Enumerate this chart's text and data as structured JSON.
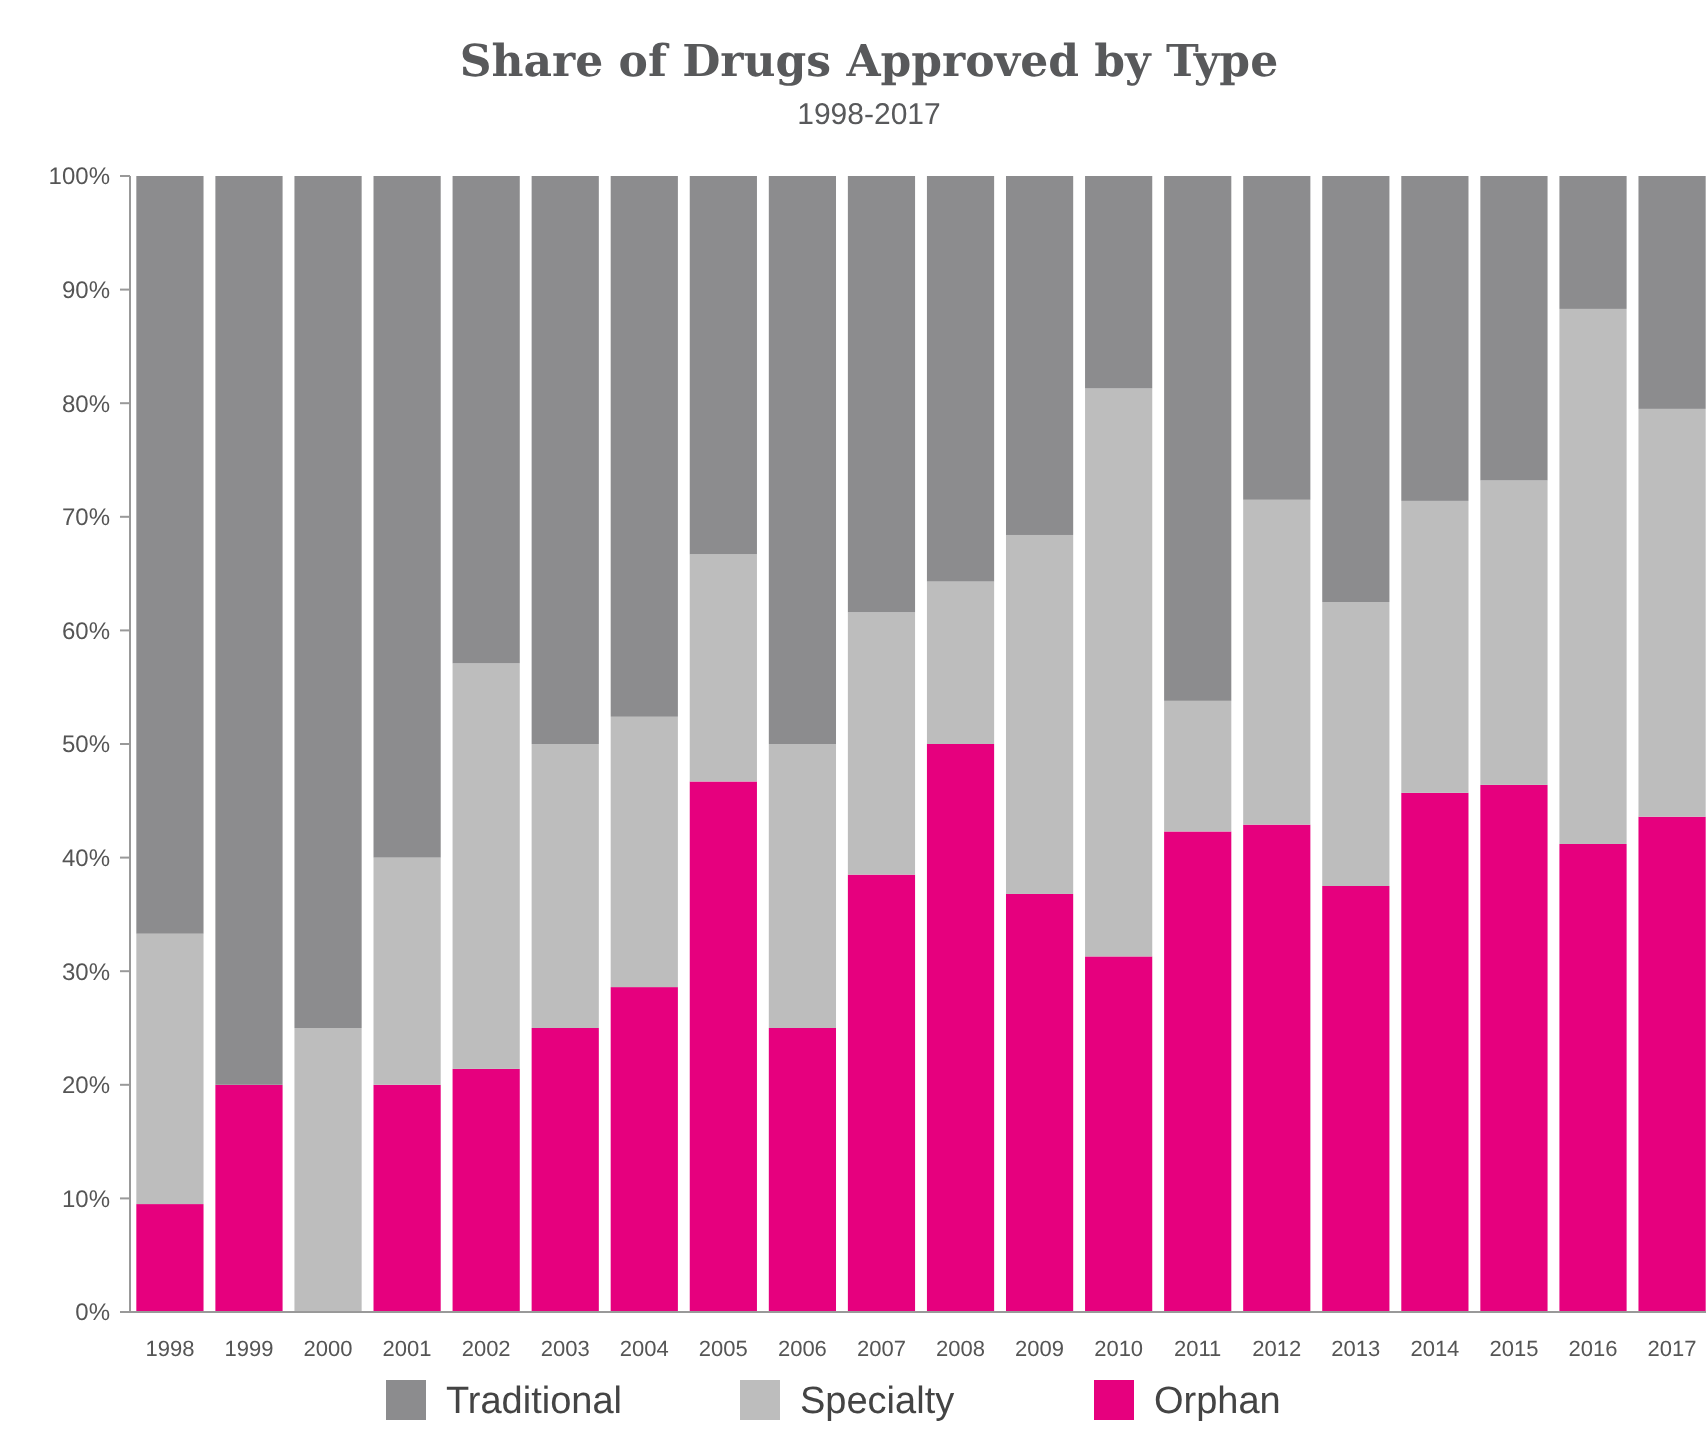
{
  "chart_data": {
    "type": "bar",
    "stacked": true,
    "title": "Share of Drugs Approved by Type",
    "subtitle": "1998-2017",
    "categories": [
      "1998",
      "1999",
      "2000",
      "2001",
      "2002",
      "2003",
      "2004",
      "2005",
      "2006",
      "2007",
      "2008",
      "2009",
      "2010",
      "2011",
      "2012",
      "2013",
      "2014",
      "2015",
      "2016",
      "2017"
    ],
    "series": [
      {
        "name": "Orphan",
        "color": "#e6007e",
        "values": [
          9.5,
          20,
          0,
          20,
          21.4,
          25,
          28.6,
          46.7,
          25,
          38.5,
          50,
          36.8,
          31.3,
          42.3,
          42.9,
          37.5,
          45.7,
          46.4,
          41.2,
          43.6
        ]
      },
      {
        "name": "Specialty",
        "color": "#bdbdbd",
        "values": [
          23.8,
          0,
          25,
          20,
          35.7,
          25,
          23.8,
          20,
          25,
          23.1,
          14.3,
          31.6,
          50,
          11.5,
          28.6,
          25,
          25.7,
          26.8,
          47.1,
          35.9
        ]
      },
      {
        "name": "Traditional",
        "color": "#8c8c8e",
        "values": [
          66.7,
          80,
          75,
          60,
          42.9,
          50,
          47.6,
          33.3,
          50,
          38.4,
          35.7,
          31.6,
          18.7,
          46.2,
          28.5,
          37.5,
          28.6,
          26.8,
          11.7,
          20.5
        ]
      }
    ],
    "ylim": [
      0,
      100
    ],
    "yticks": [
      {
        "value": 0,
        "label": "0%"
      },
      {
        "value": 10,
        "label": "10%"
      },
      {
        "value": 20,
        "label": "20%"
      },
      {
        "value": 30,
        "label": "30%"
      },
      {
        "value": 40,
        "label": "40%"
      },
      {
        "value": 50,
        "label": "50%"
      },
      {
        "value": 60,
        "label": "60%"
      },
      {
        "value": 70,
        "label": "70%"
      },
      {
        "value": 80,
        "label": "80%"
      },
      {
        "value": 90,
        "label": "90%"
      },
      {
        "value": 100,
        "label": "100%"
      }
    ],
    "legend": "bottom"
  }
}
